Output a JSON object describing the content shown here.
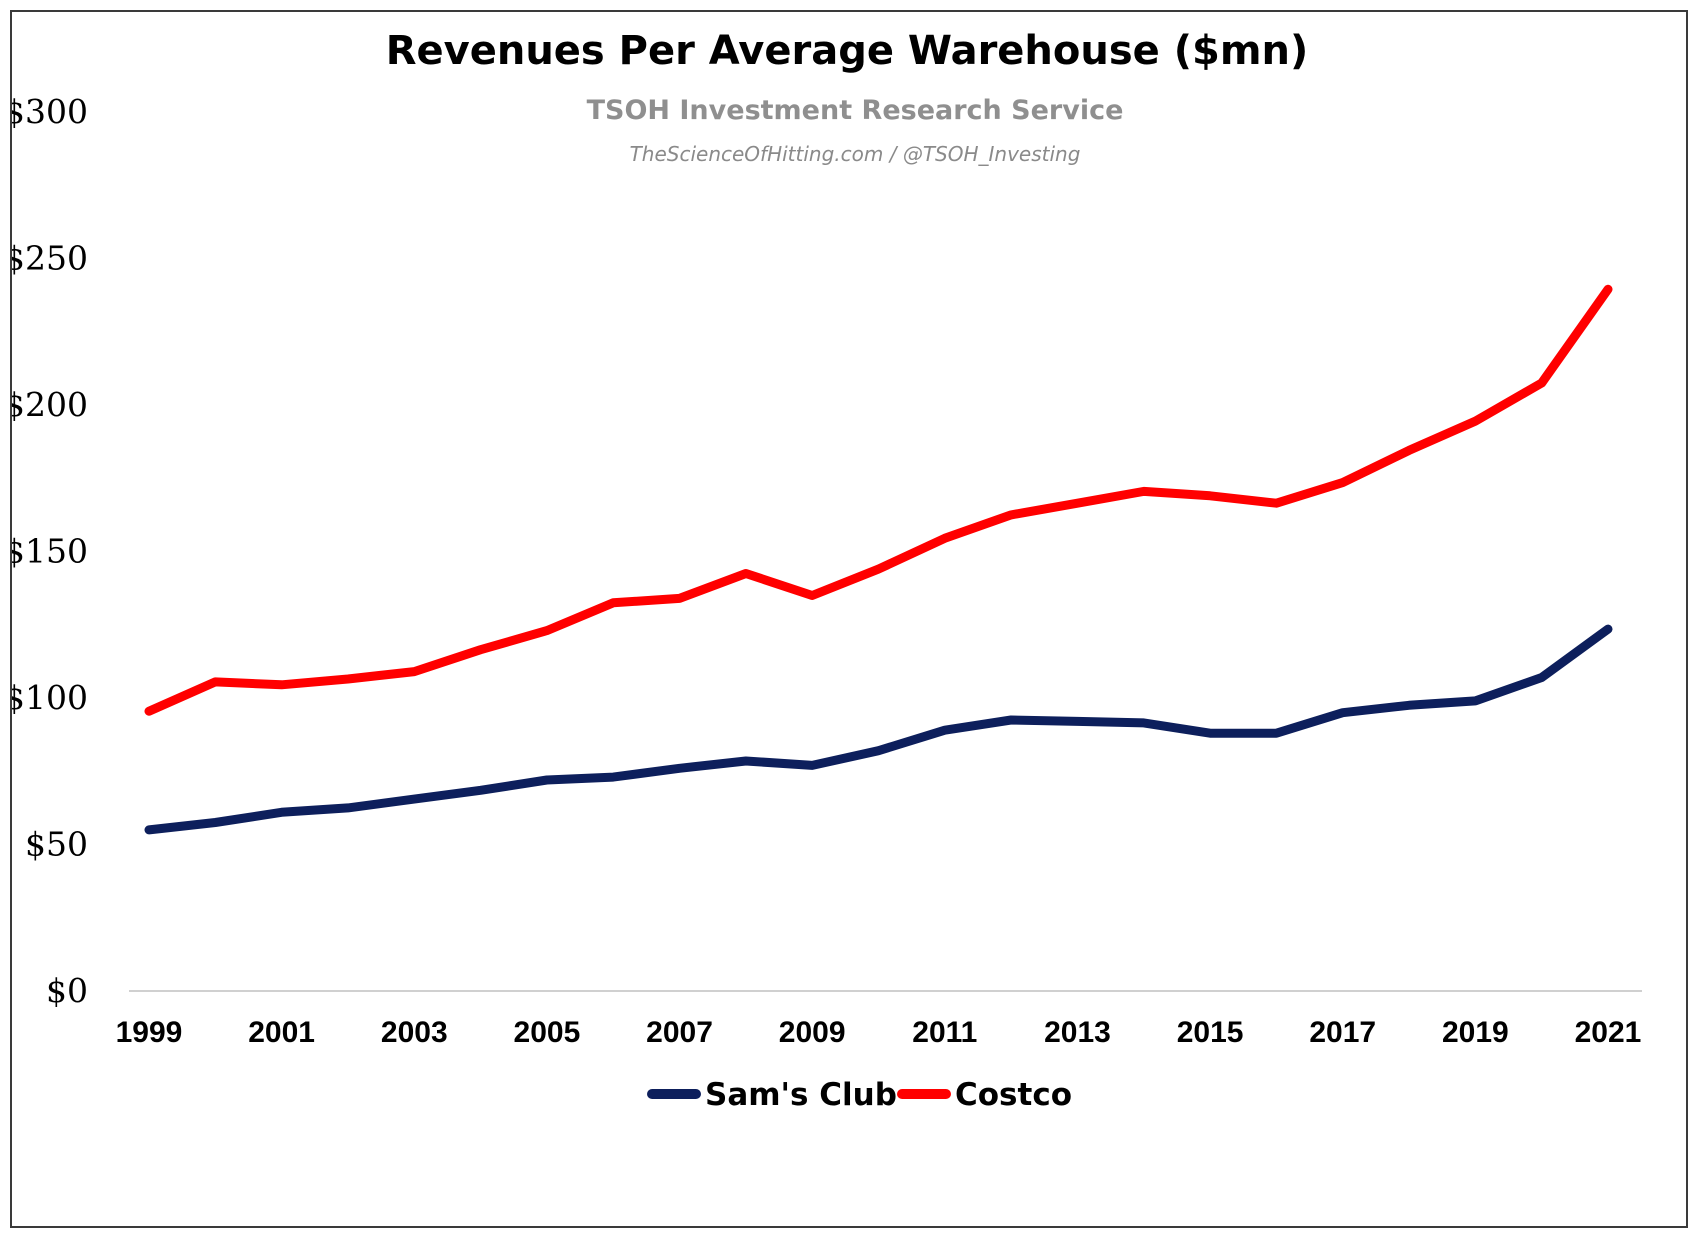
{
  "chart_data": {
    "type": "line",
    "title": "Revenues Per Average Warehouse ($mn)",
    "subtitle": "TSOH Investment Research Service",
    "credit": "TheScienceOfHitting.com / @TSOH_Investing",
    "xlabel": "",
    "ylabel": "",
    "ylim": [
      0,
      300
    ],
    "y_ticks": [
      0,
      50,
      100,
      150,
      200,
      250,
      300
    ],
    "y_tick_labels": [
      "$0",
      "$50",
      "$100",
      "$150",
      "$200",
      "$250",
      "$300"
    ],
    "x": [
      1999,
      2000,
      2001,
      2002,
      2003,
      2004,
      2005,
      2006,
      2007,
      2008,
      2009,
      2010,
      2011,
      2012,
      2013,
      2014,
      2015,
      2016,
      2017,
      2018,
      2019,
      2020,
      2021
    ],
    "x_tick_labels": [
      "1999",
      "2001",
      "2003",
      "2005",
      "2007",
      "2009",
      "2011",
      "2013",
      "2015",
      "2017",
      "2019",
      "2021"
    ],
    "grid": false,
    "legend_position": "bottom-center",
    "series": [
      {
        "name": "Sam's Club",
        "color": "#0d1f5c",
        "values": [
          55,
          57.5,
          61,
          62.5,
          65.5,
          68.5,
          72,
          73,
          76,
          78.5,
          77,
          82,
          89,
          92.5,
          92,
          91.5,
          88,
          88,
          95,
          97.5,
          99,
          107,
          123.5
        ]
      },
      {
        "name": "Costco",
        "color": "#ff0000",
        "values": [
          95.5,
          105.5,
          104.5,
          106.5,
          109,
          116.5,
          123,
          132.5,
          134,
          142.5,
          135,
          144,
          154.5,
          162.5,
          166.5,
          170.5,
          169,
          166.5,
          173.5,
          184.5,
          194.5,
          207.5,
          239.5
        ]
      }
    ]
  }
}
